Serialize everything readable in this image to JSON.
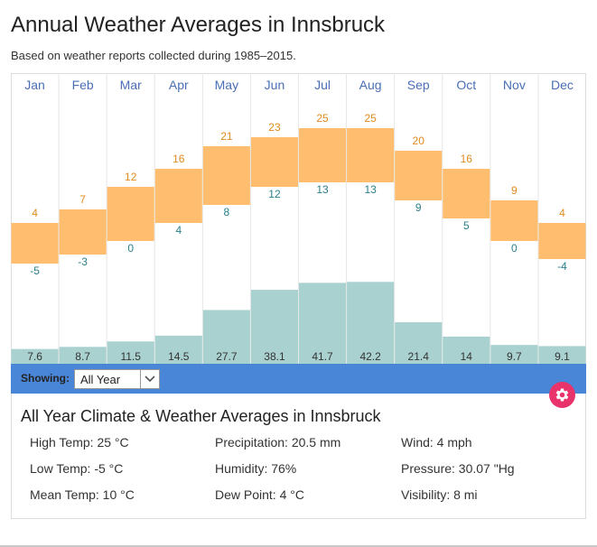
{
  "title": "Annual Weather Averages in Innsbruck",
  "subtitle": "Based on weather reports collected during 1985–2015.",
  "chart_data": {
    "type": "bar",
    "categories": [
      "Jan",
      "Feb",
      "Mar",
      "Apr",
      "May",
      "Jun",
      "Jul",
      "Aug",
      "Sep",
      "Oct",
      "Nov",
      "Dec"
    ],
    "series": [
      {
        "values": [
          4,
          7,
          12,
          16,
          21,
          23,
          25,
          25,
          20,
          16,
          9,
          4
        ]
      },
      {
        "values": [
          -5,
          -3,
          0,
          4,
          8,
          12,
          13,
          13,
          9,
          5,
          0,
          -4
        ]
      },
      {
        "values": [
          7.6,
          8.7,
          11.5,
          14.5,
          27.7,
          38.1,
          41.7,
          42.2,
          21.4,
          14,
          9.7,
          9.1
        ]
      }
    ],
    "precip_labels": [
      "7.6",
      "8.7",
      "11.5",
      "14.5",
      "27.7",
      "38.1",
      "41.7",
      "42.2",
      "21.4",
      "14",
      "9.7",
      "9.1"
    ],
    "colors": {
      "temp_bar": "#ffbe6f",
      "precip_bar": "#a8d1cf",
      "month": "#4a6fb5",
      "high_text": "#e08a1f",
      "low_text": "#2a7f8a"
    }
  },
  "controls": {
    "showing_label": "Showing:",
    "selected": "All Year",
    "bar_color": "#4a86d8",
    "settings_icon": "gear-icon"
  },
  "details": {
    "title": "All Year Climate & Weather Averages in Innsbruck",
    "stats": [
      "High Temp: 25 °C",
      "Precipitation: 20.5 mm",
      "Wind: 4 mph",
      "Low Temp: -5 °C",
      "Humidity: 76%",
      "Pressure: 30.07 \"Hg",
      "Mean Temp: 10 °C",
      "Dew Point: 4 °C",
      "Visibility: 8 mi"
    ]
  }
}
